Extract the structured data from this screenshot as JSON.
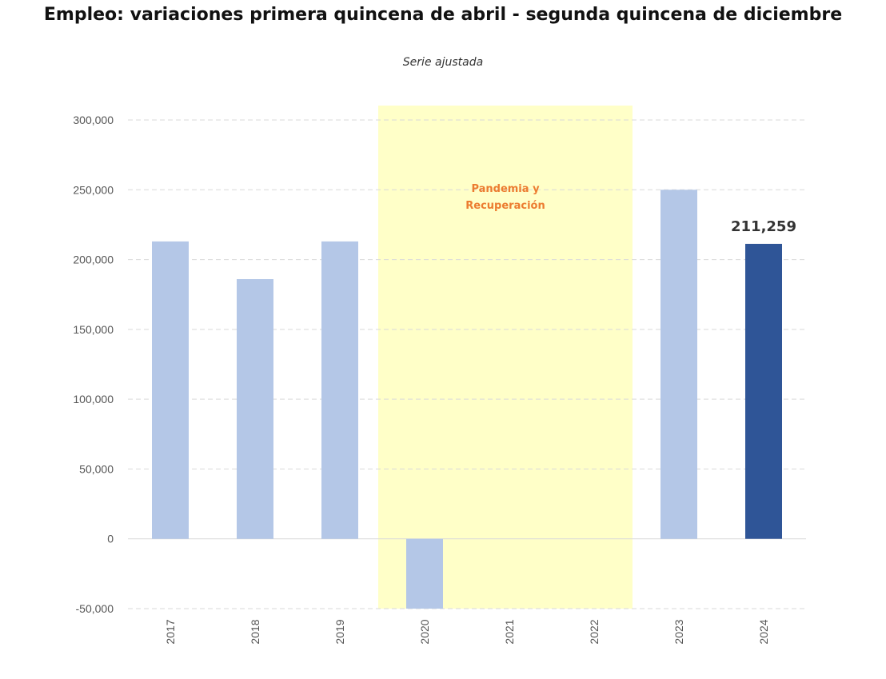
{
  "title": "Empleo: variaciones primera quincena de abril - segunda quincena de diciembre",
  "subtitle": "Serie ajustada",
  "chart_data": {
    "type": "bar",
    "categories": [
      "2017",
      "2018",
      "2019",
      "2020",
      "2021",
      "2022",
      "2023",
      "2024"
    ],
    "values": [
      213000,
      186000,
      213000,
      -50000,
      null,
      null,
      250000,
      211259
    ],
    "highlight_index": 7,
    "data_labels": [
      {
        "index": 7,
        "text": "211,259"
      }
    ],
    "ylim": [
      -50000,
      300000
    ],
    "yticks": [
      -50000,
      0,
      50000,
      100000,
      150000,
      200000,
      250000,
      300000
    ],
    "ytick_labels": [
      "-50,000",
      "0",
      "50,000",
      "100,000",
      "150,000",
      "200,000",
      "250,000",
      "300,000"
    ],
    "grid": true,
    "shaded_region": {
      "from": "2020",
      "to": "2022",
      "label_lines": [
        "Pandemia y",
        "Recuperación"
      ]
    },
    "colors": {
      "bar": "#b4c7e7",
      "highlight": "#2f5597",
      "shade": "#ffffc8",
      "shade_label": "#ec7c30",
      "grid": "#d9d9d9"
    }
  }
}
